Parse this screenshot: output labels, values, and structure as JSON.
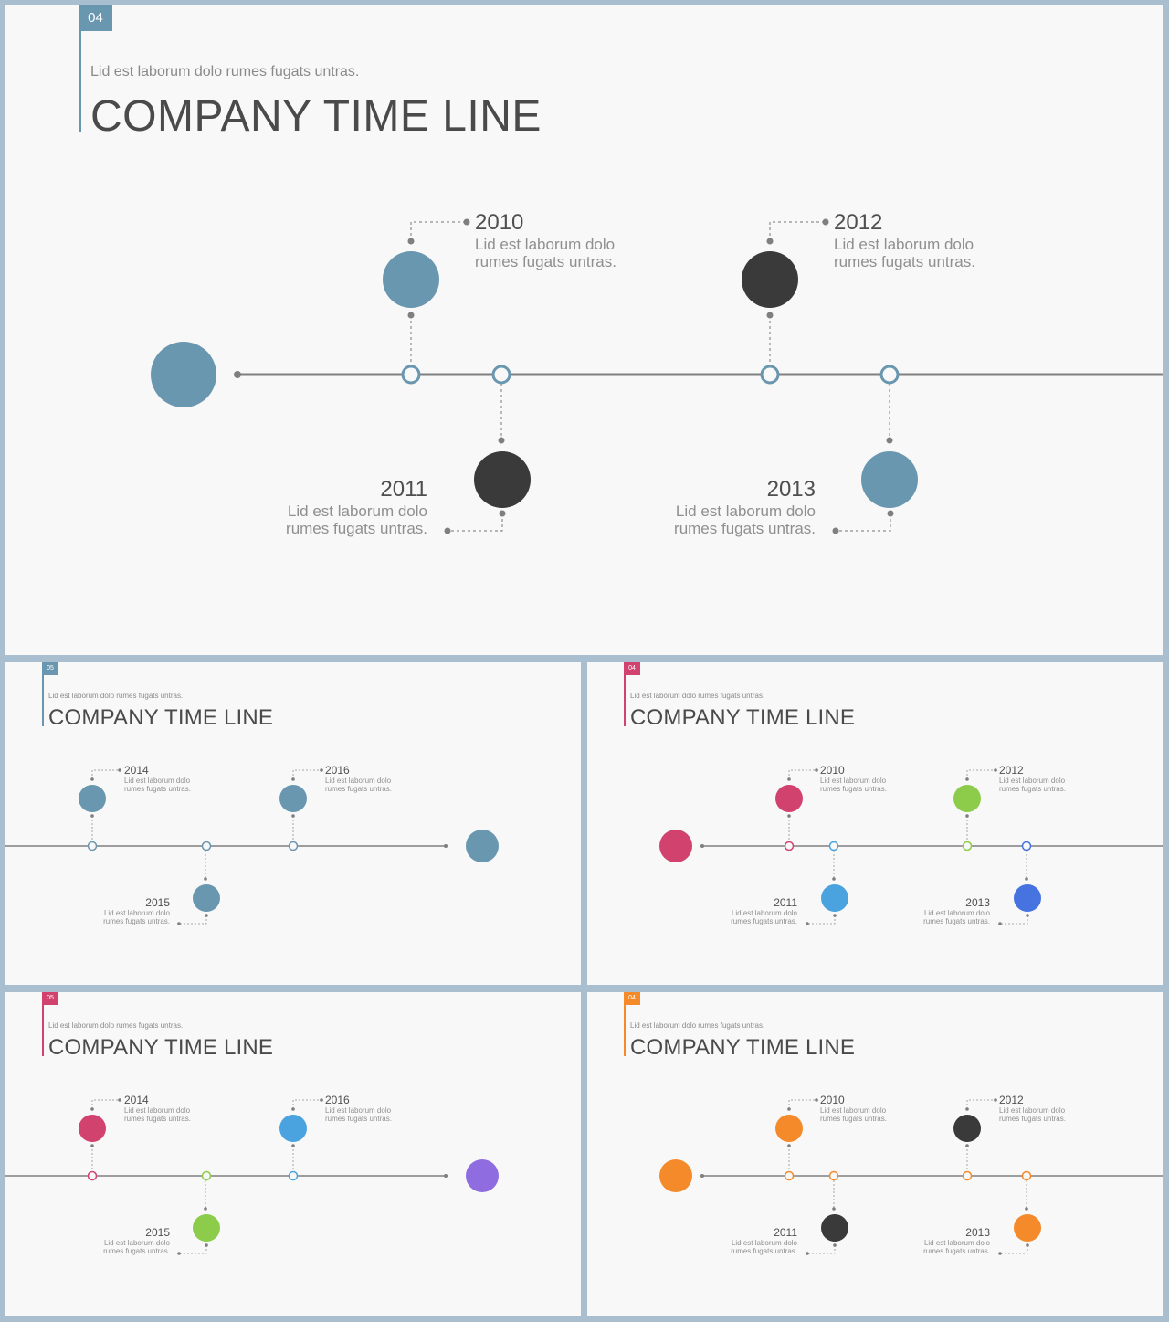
{
  "slides": [
    {
      "id": "main",
      "tag_number": "04",
      "subtitle": "Lid est laborum dolo rumes fugats untras.",
      "title": "COMPANY TIME LINE",
      "accent": "#6a97b0",
      "events": [
        {
          "year": "2010",
          "text_line1": "Lid est laborum dolo",
          "text_line2": "rumes fugats untras.",
          "color": "#6a97b0"
        },
        {
          "year": "2011",
          "text_line1": "Lid est laborum dolo",
          "text_line2": "rumes fugats untras.",
          "color": "#3a3a3a"
        },
        {
          "year": "2012",
          "text_line1": "Lid est laborum dolo",
          "text_line2": "rumes fugats untras.",
          "color": "#3a3a3a"
        },
        {
          "year": "2013",
          "text_line1": "Lid est laborum dolo",
          "text_line2": "rumes fugats untras.",
          "color": "#6a97b0"
        }
      ]
    },
    {
      "id": "blue-right",
      "tag_number": "05",
      "subtitle": "Lid est laborum dolo rumes fugats untras.",
      "title": "COMPANY TIME LINE",
      "accent": "#6a97b0",
      "events": [
        {
          "year": "2014",
          "text_line1": "Lid est laborum dolo",
          "text_line2": "rumes fugats untras.",
          "color": "#6a97b0"
        },
        {
          "year": "2015",
          "text_line1": "Lid est laborum dolo",
          "text_line2": "rumes fugats untras.",
          "color": "#6a97b0"
        },
        {
          "year": "2016",
          "text_line1": "Lid est laborum dolo",
          "text_line2": "rumes fugats untras.",
          "color": "#6a97b0"
        }
      ]
    },
    {
      "id": "colorful-left",
      "tag_number": "04",
      "subtitle": "Lid est laborum dolo rumes fugats untras.",
      "title": "COMPANY TIME LINE",
      "accent": "#d2426e",
      "events": [
        {
          "year": "2010",
          "text_line1": "Lid est laborum dolo",
          "text_line2": "rumes fugats untras.",
          "color": "#d2426e"
        },
        {
          "year": "2011",
          "text_line1": "Lid est laborum dolo",
          "text_line2": "rumes fugats untras.",
          "color": "#4aa3de"
        },
        {
          "year": "2012",
          "text_line1": "Lid est laborum dolo",
          "text_line2": "rumes fugats untras.",
          "color": "#8ccc4a"
        },
        {
          "year": "2013",
          "text_line1": "Lid est laborum dolo",
          "text_line2": "rumes fugats untras.",
          "color": "#4673e0"
        }
      ]
    },
    {
      "id": "colorful-right",
      "tag_number": "05",
      "subtitle": "Lid est laborum dolo rumes fugats untras.",
      "title": "COMPANY TIME LINE",
      "accent": "#d2426e",
      "end_color": "#8f6de0",
      "events": [
        {
          "year": "2014",
          "text_line1": "Lid est laborum dolo",
          "text_line2": "rumes fugats untras.",
          "color": "#d2426e"
        },
        {
          "year": "2015",
          "text_line1": "Lid est laborum dolo",
          "text_line2": "rumes fugats untras.",
          "color": "#8ccc4a"
        },
        {
          "year": "2016",
          "text_line1": "Lid est laborum dolo",
          "text_line2": "rumes fugats untras.",
          "color": "#4aa3de"
        }
      ]
    },
    {
      "id": "orange-left",
      "tag_number": "04",
      "subtitle": "Lid est laborum dolo rumes fugats untras.",
      "title": "COMPANY TIME LINE",
      "accent": "#f58a2a",
      "events": [
        {
          "year": "2010",
          "text_line1": "Lid est laborum dolo",
          "text_line2": "rumes fugats untras.",
          "color": "#f58a2a"
        },
        {
          "year": "2011",
          "text_line1": "Lid est laborum dolo",
          "text_line2": "rumes fugats untras.",
          "color": "#3a3a3a"
        },
        {
          "year": "2012",
          "text_line1": "Lid est laborum dolo",
          "text_line2": "rumes fugats untras.",
          "color": "#3a3a3a"
        },
        {
          "year": "2013",
          "text_line1": "Lid est laborum dolo",
          "text_line2": "rumes fugats untras.",
          "color": "#f58a2a"
        }
      ]
    }
  ]
}
